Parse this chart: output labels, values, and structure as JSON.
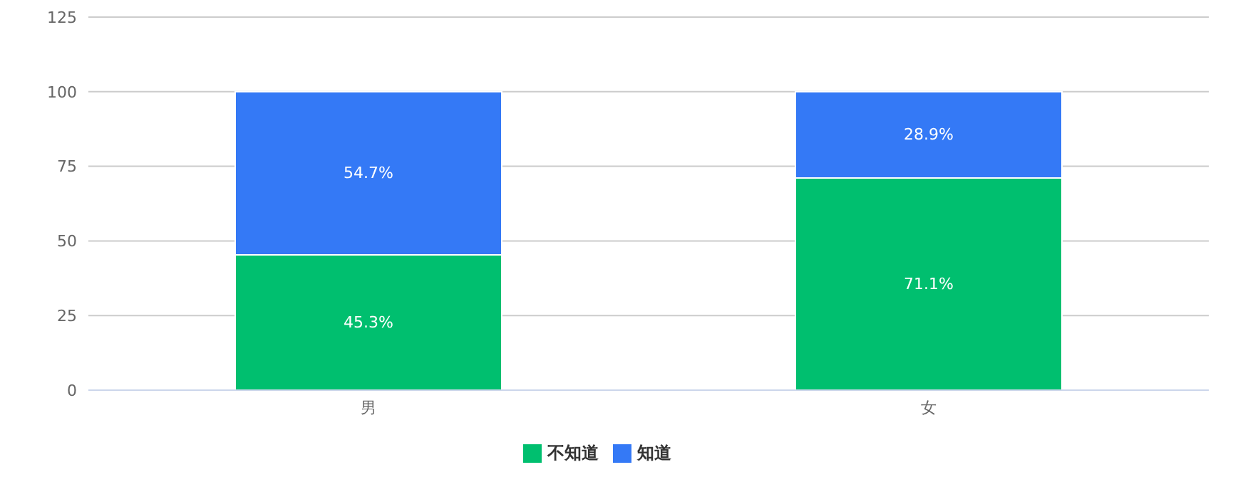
{
  "chart_data": {
    "type": "bar",
    "stacked": true,
    "categories": [
      "男",
      "女"
    ],
    "series": [
      {
        "name": "不知道",
        "color": "#00bf6f",
        "values": [
          45.3,
          71.1
        ],
        "value_labels": [
          "45.3%",
          "71.1%"
        ]
      },
      {
        "name": "知道",
        "color": "#3479f6",
        "values": [
          54.7,
          28.9
        ],
        "value_labels": [
          "54.7%",
          "28.9%"
        ]
      }
    ],
    "ylim": [
      0,
      125
    ],
    "yticks": [
      0,
      25,
      50,
      75,
      100,
      125
    ],
    "grid": "y",
    "legend": "bottom"
  }
}
